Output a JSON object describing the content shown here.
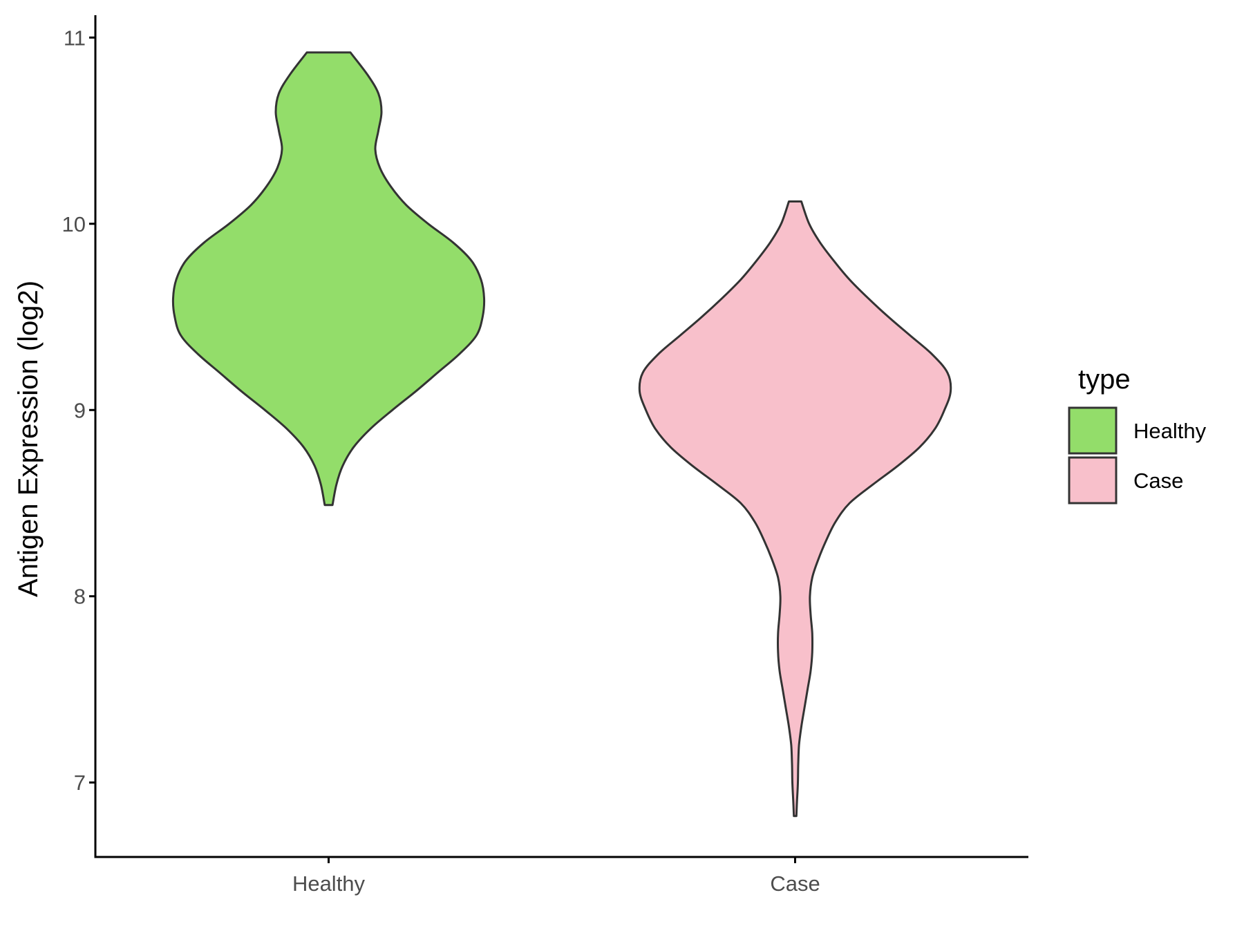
{
  "chart_data": {
    "type": "violin",
    "title": "",
    "xlabel": "",
    "ylabel": "Antigen Expression (log2)",
    "categories": [
      "Healthy",
      "Case"
    ],
    "ylim": [
      6.6,
      11.12
    ],
    "yticks": [
      7,
      8,
      9,
      10,
      11
    ],
    "grid": false,
    "legend": {
      "title": "type",
      "position": "right",
      "entries": [
        {
          "label": "Healthy",
          "color": "#93dd6a"
        },
        {
          "label": "Case",
          "color": "#f8c0cb"
        }
      ]
    },
    "series": [
      {
        "name": "Healthy",
        "color": "#93dd6a",
        "density_profile": [
          [
            8.49,
            0.025
          ],
          [
            8.6,
            0.05
          ],
          [
            8.7,
            0.09
          ],
          [
            8.8,
            0.16
          ],
          [
            8.9,
            0.27
          ],
          [
            9.0,
            0.41
          ],
          [
            9.1,
            0.56
          ],
          [
            9.2,
            0.7
          ],
          [
            9.3,
            0.84
          ],
          [
            9.4,
            0.95
          ],
          [
            9.5,
            0.99
          ],
          [
            9.6,
            1.0
          ],
          [
            9.7,
            0.98
          ],
          [
            9.8,
            0.92
          ],
          [
            9.9,
            0.8
          ],
          [
            10.0,
            0.64
          ],
          [
            10.1,
            0.5
          ],
          [
            10.2,
            0.4
          ],
          [
            10.3,
            0.33
          ],
          [
            10.4,
            0.3
          ],
          [
            10.5,
            0.32
          ],
          [
            10.6,
            0.34
          ],
          [
            10.7,
            0.32
          ],
          [
            10.8,
            0.25
          ],
          [
            10.92,
            0.14
          ]
        ]
      },
      {
        "name": "Case",
        "color": "#f8c0cb",
        "density_profile": [
          [
            6.82,
            0.008
          ],
          [
            6.9,
            0.012
          ],
          [
            7.0,
            0.018
          ],
          [
            7.1,
            0.02
          ],
          [
            7.2,
            0.025
          ],
          [
            7.3,
            0.04
          ],
          [
            7.4,
            0.06
          ],
          [
            7.5,
            0.08
          ],
          [
            7.6,
            0.1
          ],
          [
            7.7,
            0.11
          ],
          [
            7.8,
            0.11
          ],
          [
            7.9,
            0.1
          ],
          [
            8.0,
            0.095
          ],
          [
            8.1,
            0.11
          ],
          [
            8.2,
            0.15
          ],
          [
            8.3,
            0.2
          ],
          [
            8.4,
            0.26
          ],
          [
            8.5,
            0.35
          ],
          [
            8.6,
            0.5
          ],
          [
            8.7,
            0.66
          ],
          [
            8.8,
            0.8
          ],
          [
            8.9,
            0.9
          ],
          [
            9.0,
            0.96
          ],
          [
            9.1,
            1.0
          ],
          [
            9.2,
            0.98
          ],
          [
            9.3,
            0.88
          ],
          [
            9.4,
            0.74
          ],
          [
            9.5,
            0.6
          ],
          [
            9.6,
            0.47
          ],
          [
            9.7,
            0.35
          ],
          [
            9.8,
            0.25
          ],
          [
            9.9,
            0.16
          ],
          [
            10.0,
            0.09
          ],
          [
            10.12,
            0.04
          ]
        ]
      }
    ]
  }
}
